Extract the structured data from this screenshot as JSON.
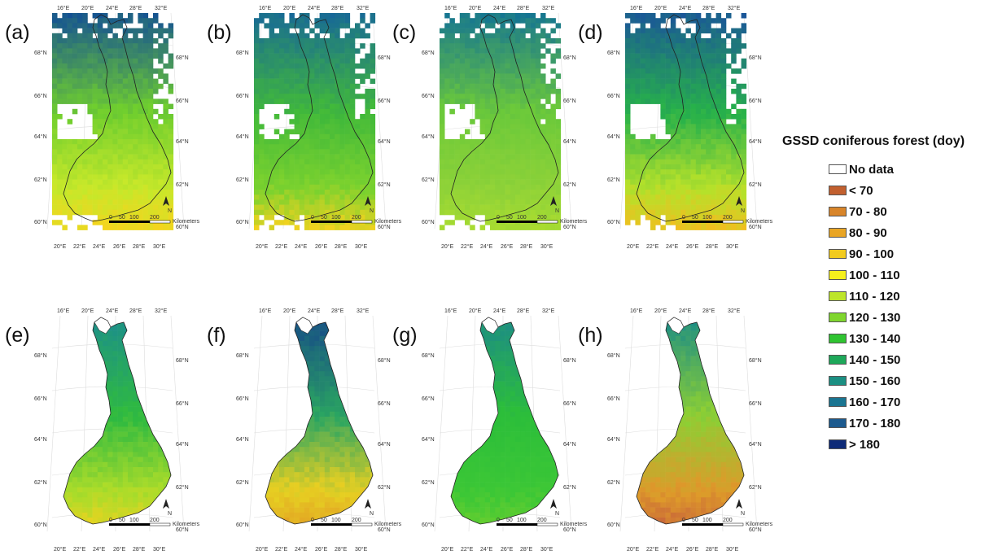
{
  "legend": {
    "title": "GSSD coniferous forest (doy)",
    "items": [
      {
        "label": "No data",
        "color": "#ffffff"
      },
      {
        "label": "< 70",
        "color": "#c2602f"
      },
      {
        "label": "70 - 80",
        "color": "#d8852a"
      },
      {
        "label": "80 - 90",
        "color": "#e9a524"
      },
      {
        "label": "90 - 100",
        "color": "#f2cb1f"
      },
      {
        "label": "100 - 110",
        "color": "#f6f01c"
      },
      {
        "label": "110 - 120",
        "color": "#bde52a"
      },
      {
        "label": "120 - 130",
        "color": "#7fd62e"
      },
      {
        "label": "130 - 140",
        "color": "#2fc431"
      },
      {
        "label": "140 - 150",
        "color": "#1ea85a"
      },
      {
        "label": "150 - 160",
        "color": "#1b8f82"
      },
      {
        "label": "160 - 170",
        "color": "#1a7591"
      },
      {
        "label": "170 - 180",
        "color": "#1c5a8e"
      },
      {
        "label": "> 180",
        "color": "#0e2b78"
      }
    ]
  },
  "axis_ticks": {
    "top_lon": [
      "16°E",
      "20°E",
      "24°E",
      "28°E",
      "32°E"
    ],
    "bottom_lon": [
      "20°E",
      "22°E",
      "24°E",
      "26°E",
      "28°E",
      "30°E"
    ],
    "left_lat": [
      "68°N",
      "66°N",
      "64°N",
      "62°N",
      "60°N"
    ],
    "right_lat": [
      "68°N",
      "66°N",
      "64°N",
      "62°N",
      "60°N"
    ]
  },
  "scale_bar": {
    "ticks": [
      "0",
      "50",
      "100",
      "200"
    ],
    "unit": "Kilometers"
  },
  "north_label": "N",
  "panels": [
    {
      "label": "(a)",
      "north": "#1a5a8c",
      "mid": "#6fce2e",
      "south": "#c6e82a",
      "coast": "#f3d51e",
      "mask": "grid"
    },
    {
      "label": "(b)",
      "north": "#1a6e90",
      "mid": "#41b93a",
      "south": "#7cd22e",
      "coast": "#f0d21f",
      "mask": "grid"
    },
    {
      "label": "(c)",
      "north": "#1a7a8c",
      "mid": "#6bc93a",
      "south": "#8ed238",
      "coast": "#a9dc30",
      "mask": "grid"
    },
    {
      "label": "(d)",
      "north": "#1b5d92",
      "mid": "#27b14a",
      "south": "#b5e12a",
      "coast": "#f0bf1f",
      "mask": "grid"
    },
    {
      "label": "(e)",
      "north": "#1d9186",
      "mid": "#2fba40",
      "south": "#aadc2a",
      "coast": "#eed21f",
      "mask": "finland"
    },
    {
      "label": "(f)",
      "north": "#174e86",
      "mid": "#2aa561",
      "south": "#e6cf22",
      "coast": "#e2a024",
      "mask": "finland"
    },
    {
      "label": "(g)",
      "north": "#1d8e82",
      "mid": "#2cbe3a",
      "south": "#3cc736",
      "coast": "#6ccf2e",
      "mask": "finland"
    },
    {
      "label": "(h)",
      "north": "#1f8f82",
      "mid": "#8ccf34",
      "south": "#de9a2a",
      "coast": "#c7633a",
      "mask": "finland"
    }
  ]
}
